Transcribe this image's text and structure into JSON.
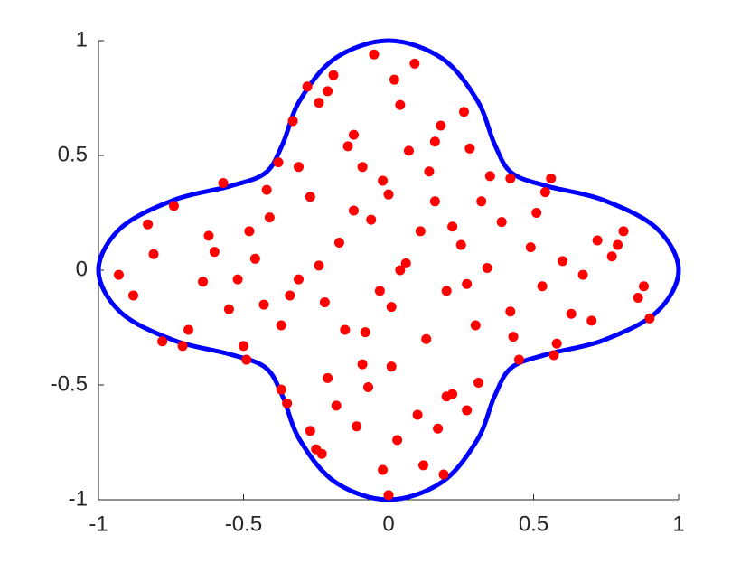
{
  "chart_data": {
    "type": "scatter",
    "xlim": [
      -1,
      1
    ],
    "ylim": [
      -1,
      1
    ],
    "xticks": [
      -1,
      -0.5,
      0,
      0.5,
      1
    ],
    "yticks": [
      -1,
      -0.5,
      0,
      0.5,
      1
    ],
    "series": [
      {
        "mode": "line",
        "color": "#0000ff",
        "x": [
          1,
          0.9233,
          0.7391,
          0.5476,
          0.4243,
          0.3659,
          0.3061,
          0.1837,
          0,
          -0.1837,
          -0.3061,
          -0.3659,
          -0.4243,
          -0.5476,
          -0.7391,
          -0.9233,
          -1,
          -0.9233,
          -0.7391,
          -0.5476,
          -0.4243,
          -0.3659,
          -0.3061,
          -0.1837,
          0,
          0.1837,
          0.3061,
          0.3659,
          0.4243,
          0.5476,
          0.7391,
          0.9233
        ],
        "y": [
          0,
          0.1837,
          0.3061,
          0.3659,
          0.4243,
          0.5476,
          0.7391,
          0.9233,
          1,
          0.9233,
          0.7391,
          0.5476,
          0.4243,
          0.3659,
          0.3061,
          0.1837,
          0,
          -0.1837,
          -0.3061,
          -0.3659,
          -0.4243,
          -0.5476,
          -0.7391,
          -0.9233,
          -1,
          -0.9233,
          -0.7391,
          -0.5476,
          -0.4243,
          -0.3659,
          -0.3061,
          -0.1837
        ]
      },
      {
        "mode": "markers",
        "color": "#ff0000",
        "x": [
          -0.05,
          0.09,
          -0.19,
          -0.28,
          -0.21,
          0.02,
          -0.24,
          0.04,
          0.26,
          -0.33,
          0.18,
          -0.12,
          0.16,
          -0.14,
          0.28,
          0.07,
          -0.38,
          -0.09,
          -0.31,
          0.14,
          0.35,
          0.42,
          0.56,
          -0.57,
          -0.02,
          -0.42,
          0.0,
          -0.27,
          0.54,
          0.32,
          0.16,
          -0.74,
          -0.12,
          0.51,
          -0.41,
          -0.06,
          0.39,
          -0.83,
          0.22,
          0.11,
          -0.48,
          -0.62,
          -0.17,
          0.72,
          0.81,
          0.79,
          0.25,
          -0.6,
          0.49,
          -0.81,
          0.77,
          0.6,
          -0.46,
          0.06,
          -0.24,
          0.34,
          0.04,
          -0.93,
          0.67,
          -0.52,
          -0.64,
          -0.31,
          0.27,
          0.53,
          0.88,
          -0.03,
          -0.34,
          0.2,
          -0.88,
          0.86,
          -0.43,
          -0.22,
          0.01,
          -0.55,
          0.42,
          0.63,
          0.9,
          0.7,
          -0.37,
          0.3,
          -0.15,
          -0.08,
          -0.69,
          0.43,
          0.13,
          -0.78,
          0.58,
          -0.71,
          -0.5,
          0.57,
          -0.49,
          0.45,
          -0.09,
          0.01,
          -0.21,
          0.31,
          -0.07,
          -0.37,
          0.22,
          0.2,
          -0.35,
          -0.18,
          0.27,
          0.1,
          -0.11,
          0.17,
          -0.27,
          0.03,
          -0.25,
          -0.23,
          0.12,
          -0.02,
          0.19,
          0.0
        ],
        "y": [
          0.94,
          0.9,
          0.85,
          0.8,
          0.78,
          0.83,
          0.73,
          0.72,
          0.69,
          0.65,
          0.63,
          0.59,
          0.56,
          0.54,
          0.53,
          0.52,
          0.47,
          0.45,
          0.45,
          0.43,
          0.41,
          0.4,
          0.4,
          0.38,
          0.39,
          0.35,
          0.33,
          0.32,
          0.34,
          0.3,
          0.3,
          0.28,
          0.26,
          0.25,
          0.23,
          0.22,
          0.21,
          0.2,
          0.19,
          0.17,
          0.17,
          0.15,
          0.12,
          0.13,
          0.17,
          0.11,
          0.11,
          0.08,
          0.1,
          0.07,
          0.06,
          0.04,
          0.05,
          0.03,
          0.02,
          0.01,
          0.0,
          -0.02,
          -0.02,
          -0.04,
          -0.05,
          -0.04,
          -0.06,
          -0.07,
          -0.07,
          -0.09,
          -0.11,
          -0.09,
          -0.11,
          -0.12,
          -0.15,
          -0.14,
          -0.16,
          -0.17,
          -0.18,
          -0.19,
          -0.21,
          -0.22,
          -0.24,
          -0.24,
          -0.26,
          -0.27,
          -0.26,
          -0.29,
          -0.3,
          -0.31,
          -0.32,
          -0.33,
          -0.33,
          -0.37,
          -0.39,
          -0.39,
          -0.41,
          -0.42,
          -0.47,
          -0.49,
          -0.51,
          -0.52,
          -0.54,
          -0.55,
          -0.58,
          -0.59,
          -0.61,
          -0.63,
          -0.68,
          -0.69,
          -0.7,
          -0.74,
          -0.78,
          -0.8,
          -0.85,
          -0.87,
          -0.89,
          -0.98
        ]
      }
    ]
  }
}
